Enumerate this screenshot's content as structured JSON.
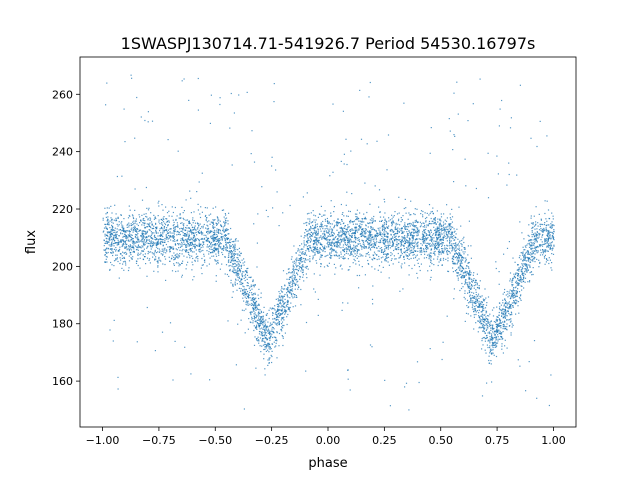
{
  "chart_data": {
    "type": "scatter",
    "title": "1SWASPJ130714.71-541926.7 Period 54530.16797s",
    "xlabel": "phase",
    "ylabel": "flux",
    "xlim": [
      -1.1,
      1.1
    ],
    "ylim": [
      144,
      273
    ],
    "xticks": [
      -1.0,
      -0.75,
      -0.5,
      -0.25,
      0.0,
      0.25,
      0.5,
      0.75,
      1.0
    ],
    "xtick_labels": [
      "−1.00",
      "−0.75",
      "−0.50",
      "−0.25",
      "0.00",
      "0.25",
      "0.50",
      "0.75",
      "1.00"
    ],
    "yticks": [
      160,
      180,
      200,
      220,
      240,
      260
    ],
    "ytick_labels": [
      "160",
      "180",
      "200",
      "220",
      "240",
      "260"
    ],
    "grid": false,
    "marker_color": "#1f77b4",
    "series_model": {
      "description_note": "folded light curve, phase range -1 to 1",
      "baseline_flux": 210,
      "noise_sd": 4.5,
      "eclipse_centers": [
        -0.27,
        0.73
      ],
      "eclipse_depth": 36,
      "eclipse_half_width": 0.19,
      "outlier_fraction": 0.04,
      "outlier_range": [
        150,
        268
      ],
      "n_points": 6000
    }
  }
}
